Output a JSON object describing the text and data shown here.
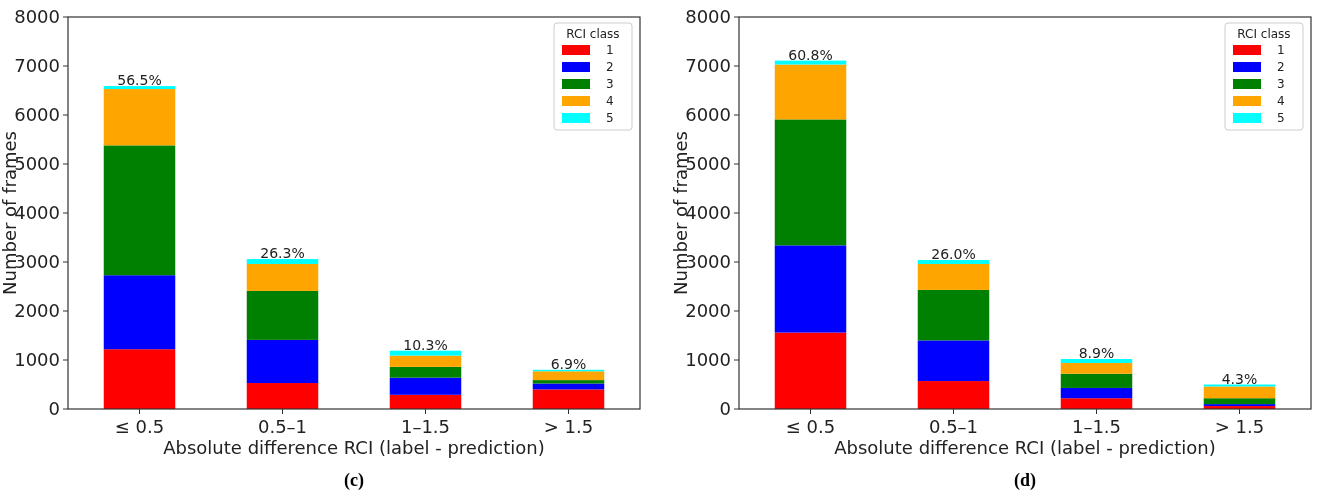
{
  "chart_data": [
    {
      "type": "bar",
      "stacked": true,
      "categories": [
        "≤ 0.5",
        "0.5–1",
        "1–1.5",
        "> 1.5"
      ],
      "xlabel": "Absolute difference RCI (label - prediction)",
      "ylabel": "Number of frames",
      "legend_title": "RCI class",
      "legend": "top right",
      "ylim": [
        0,
        8000
      ],
      "yticks": [
        0,
        1000,
        2000,
        3000,
        4000,
        5000,
        6000,
        7000,
        8000
      ],
      "annotations": [
        {
          "text": "56.5%",
          "x": "≤ 0.5",
          "y": 6590
        },
        {
          "text": "26.3%",
          "x": "0.5–1",
          "y": 3060
        },
        {
          "text": "10.3%",
          "x": "1–1.5",
          "y": 1190
        },
        {
          "text": "6.9%",
          "x": "> 1.5",
          "y": 800
        },
        "(c)"
      ],
      "series": [
        {
          "name": "1",
          "color": "#ff0000",
          "values": [
            1220,
            530,
            290,
            400
          ]
        },
        {
          "name": "2",
          "color": "#0000ff",
          "values": [
            1510,
            880,
            350,
            120
          ]
        },
        {
          "name": "3",
          "color": "#008000",
          "values": [
            2650,
            1000,
            220,
            70
          ]
        },
        {
          "name": "4",
          "color": "#ffa500",
          "values": [
            1150,
            550,
            230,
            180
          ]
        },
        {
          "name": "5",
          "color": "#00ffff",
          "values": [
            60,
            100,
            100,
            30
          ]
        }
      ]
    },
    {
      "type": "bar",
      "stacked": true,
      "categories": [
        "≤ 0.5",
        "0.5–1",
        "1–1.5",
        "> 1.5"
      ],
      "xlabel": "Absolute difference RCI (label - prediction)",
      "ylabel": "Number of frames",
      "legend_title": "RCI class",
      "legend": "top right",
      "ylim": [
        0,
        8000
      ],
      "yticks": [
        0,
        1000,
        2000,
        3000,
        4000,
        5000,
        6000,
        7000,
        8000
      ],
      "annotations": [
        {
          "text": "60.8%",
          "x": "≤ 0.5",
          "y": 7110
        },
        {
          "text": "26.0%",
          "x": "0.5–1",
          "y": 3040
        },
        {
          "text": "8.9%",
          "x": "1–1.5",
          "y": 1020
        },
        {
          "text": "4.3%",
          "x": "> 1.5",
          "y": 500
        },
        "(d)"
      ],
      "series": [
        {
          "name": "1",
          "color": "#ff0000",
          "values": [
            1560,
            570,
            220,
            60
          ]
        },
        {
          "name": "2",
          "color": "#0000ff",
          "values": [
            1780,
            830,
            210,
            40
          ]
        },
        {
          "name": "3",
          "color": "#008000",
          "values": [
            2570,
            1030,
            290,
            120
          ]
        },
        {
          "name": "4",
          "color": "#ffa500",
          "values": [
            1120,
            530,
            220,
            240
          ]
        },
        {
          "name": "5",
          "color": "#00ffff",
          "values": [
            80,
            80,
            80,
            40
          ]
        }
      ]
    }
  ]
}
